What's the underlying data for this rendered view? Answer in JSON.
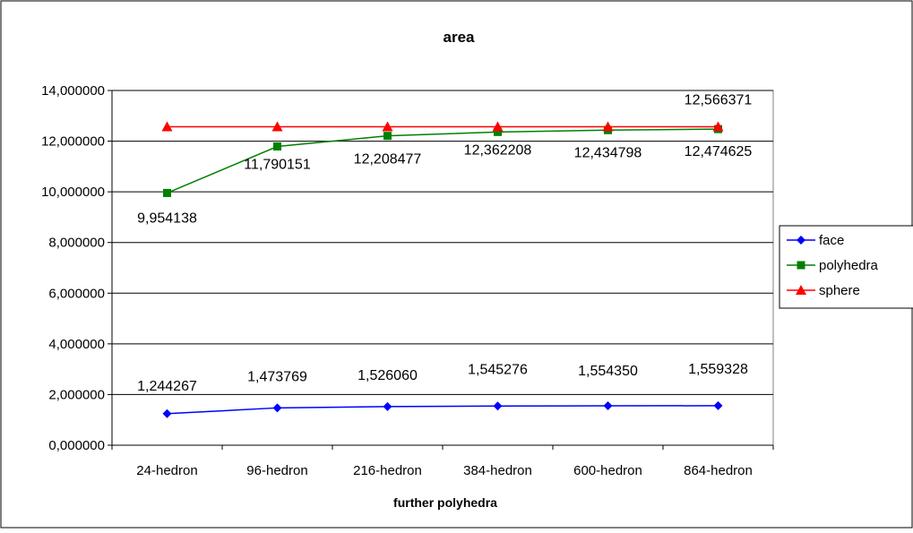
{
  "chart_data": {
    "type": "line",
    "title": "area",
    "xlabel": "further polyhedra",
    "ylabel": "",
    "categories": [
      "24-hedron",
      "96-hedron",
      "216-hedron",
      "384-hedron",
      "600-hedron",
      "864-hedron"
    ],
    "ylim": [
      0,
      14
    ],
    "y_ticks": [
      0,
      2,
      4,
      6,
      8,
      10,
      12,
      14
    ],
    "y_tick_labels": [
      "0,000000",
      "2,000000",
      "4,000000",
      "6,000000",
      "8,000000",
      "10,000000",
      "12,000000",
      "14,000000"
    ],
    "grid": true,
    "legend_position": "right",
    "series": [
      {
        "name": "face",
        "color": "#0000ff",
        "marker": "diamond",
        "values": [
          1.244267,
          1.473769,
          1.52606,
          1.545276,
          1.55435,
          1.559328
        ],
        "labels": [
          "1,244267",
          "1,473769",
          "1,526060",
          "1,545276",
          "1,554350",
          "1,559328"
        ]
      },
      {
        "name": "polyhedra",
        "color": "#008000",
        "marker": "square",
        "values": [
          9.954138,
          11.790151,
          12.208477,
          12.362208,
          12.434798,
          12.474625
        ],
        "labels": [
          "9,954138",
          "11,790151",
          "12,208477",
          "12,362208",
          "12,434798",
          "12,474625"
        ]
      },
      {
        "name": "sphere",
        "color": "#ff0000",
        "marker": "triangle",
        "values": [
          12.566371,
          12.566371,
          12.566371,
          12.566371,
          12.566371,
          12.566371
        ],
        "labels": [
          "",
          "",
          "",
          "",
          "",
          "12,566371"
        ]
      }
    ]
  }
}
